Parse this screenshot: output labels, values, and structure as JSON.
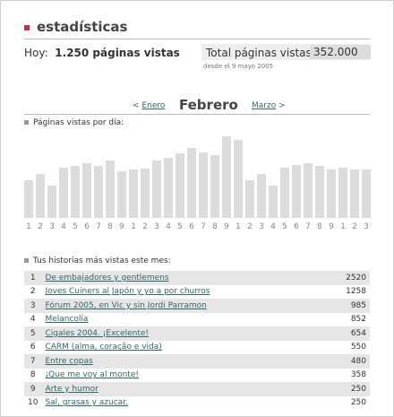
{
  "header": {
    "title": "estadísticas"
  },
  "summary": {
    "today_label": "Hoy:",
    "today_value": "1.250 páginas vistas",
    "total_label": "Total páginas vistas:",
    "total_value": "352.000",
    "since": "desde el 9 mayo 2005"
  },
  "month_nav": {
    "prev_arrow": "<",
    "prev": "Enero",
    "current": "Febrero",
    "next": "Marzo",
    "next_arrow": ">"
  },
  "chart_data": {
    "type": "bar",
    "title": "Páginas vistas por día:",
    "categories": [
      "1",
      "2",
      "3",
      "4",
      "5",
      "6",
      "7",
      "8",
      "9",
      "1",
      "2",
      "3",
      "4",
      "5",
      "6",
      "7",
      "8",
      "9",
      "1",
      "2",
      "3",
      "4",
      "5",
      "6",
      "7",
      "8",
      "9",
      "1",
      "2",
      "3"
    ],
    "values": [
      42,
      49,
      36,
      56,
      58,
      61,
      58,
      64,
      52,
      54,
      55,
      64,
      67,
      72,
      78,
      73,
      70,
      91,
      87,
      42,
      49,
      36,
      56,
      59,
      61,
      58,
      54,
      56,
      54,
      54
    ],
    "color": "#dcdcdc",
    "ylim": [
      0,
      100
    ]
  },
  "stories": {
    "title": "Tus historias más vistas este mes:",
    "rows": [
      [
        1,
        "De embajadores y gentlemens",
        2520
      ],
      [
        2,
        "Joves Cuiners al Japón y yo a por churros",
        1258
      ],
      [
        3,
        "Fórum 2005, en Vic y sin Jordi Parramon",
        985
      ],
      [
        4,
        "Melancolía",
        852
      ],
      [
        5,
        "Cigales 2004. ¡Excelente!",
        654
      ],
      [
        6,
        "CARM (alma, coração e vida)",
        550
      ],
      [
        7,
        "Entre copas",
        480
      ],
      [
        8,
        "¡Que me voy al monte!",
        358
      ],
      [
        9,
        "Arte y humor",
        250
      ],
      [
        10,
        "Sal, grasas y azucar.",
        250
      ]
    ]
  }
}
